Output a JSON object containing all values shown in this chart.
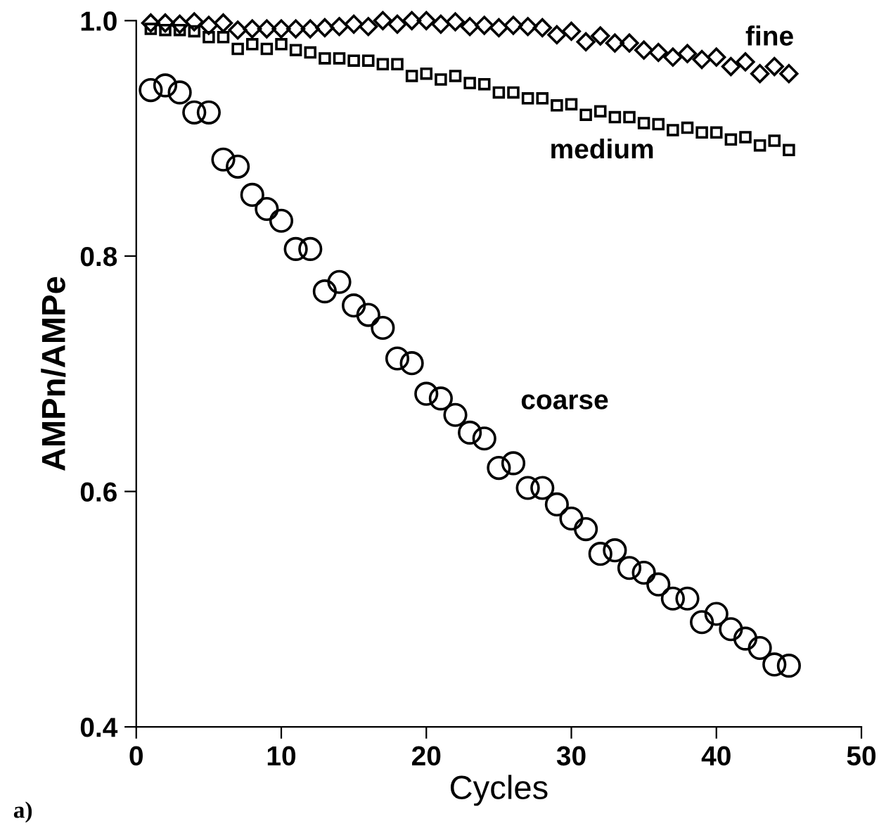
{
  "chart_data": {
    "type": "scatter",
    "xlabel": "Cycles",
    "ylabel": "AMPn/AMPe",
    "xlim": [
      0,
      50
    ],
    "ylim": [
      0.4,
      1.0
    ],
    "xticks": [
      0,
      10,
      20,
      30,
      40,
      50
    ],
    "yticks": [
      {
        "value": 0.4,
        "label": "0.4"
      },
      {
        "value": 0.6,
        "label": "0.6"
      },
      {
        "value": 0.8,
        "label": "0.8"
      },
      {
        "value": 1.0,
        "label": "1.0"
      }
    ],
    "grid": false,
    "legend": false,
    "x": [
      1,
      2,
      3,
      4,
      5,
      6,
      7,
      8,
      9,
      10,
      11,
      12,
      13,
      14,
      15,
      16,
      17,
      18,
      19,
      20,
      21,
      22,
      23,
      24,
      25,
      26,
      27,
      28,
      29,
      30,
      31,
      32,
      33,
      34,
      35,
      36,
      37,
      38,
      39,
      40,
      41,
      42,
      43,
      44,
      45
    ],
    "series": [
      {
        "name": "fine",
        "color": "#000000",
        "marker": "diamond",
        "values": [
          0.998,
          0.998,
          0.997,
          0.999,
          0.996,
          0.998,
          0.992,
          0.993,
          0.993,
          0.993,
          0.993,
          0.993,
          0.994,
          0.995,
          0.997,
          0.995,
          1.0,
          0.997,
          1.0,
          1.0,
          0.997,
          0.999,
          0.995,
          0.996,
          0.994,
          0.996,
          0.995,
          0.994,
          0.988,
          0.991,
          0.982,
          0.987,
          0.981,
          0.981,
          0.975,
          0.973,
          0.969,
          0.972,
          0.967,
          0.969,
          0.961,
          0.965,
          0.955,
          0.961,
          0.955
        ]
      },
      {
        "name": "medium",
        "color": "#000000",
        "marker": "square",
        "values": [
          0.993,
          0.992,
          0.992,
          0.991,
          0.986,
          0.986,
          0.976,
          0.98,
          0.976,
          0.98,
          0.975,
          0.973,
          0.968,
          0.968,
          0.966,
          0.966,
          0.963,
          0.963,
          0.953,
          0.955,
          0.95,
          0.953,
          0.947,
          0.946,
          0.939,
          0.939,
          0.934,
          0.934,
          0.928,
          0.929,
          0.92,
          0.923,
          0.918,
          0.918,
          0.913,
          0.912,
          0.907,
          0.909,
          0.905,
          0.905,
          0.899,
          0.901,
          0.894,
          0.898,
          0.89
        ]
      },
      {
        "name": "coarse",
        "color": "#000000",
        "marker": "circle",
        "values": [
          0.941,
          0.945,
          0.939,
          0.922,
          0.922,
          0.882,
          0.876,
          0.852,
          0.84,
          0.83,
          0.806,
          0.806,
          0.77,
          0.778,
          0.758,
          0.75,
          0.739,
          0.713,
          0.709,
          0.683,
          0.679,
          0.665,
          0.65,
          0.645,
          0.62,
          0.624,
          0.603,
          0.603,
          0.589,
          0.577,
          0.568,
          0.547,
          0.55,
          0.535,
          0.531,
          0.521,
          0.509,
          0.509,
          0.489,
          0.496,
          0.483,
          0.475,
          0.467,
          0.453,
          0.452
        ]
      }
    ],
    "annotations": [
      "a)"
    ]
  }
}
